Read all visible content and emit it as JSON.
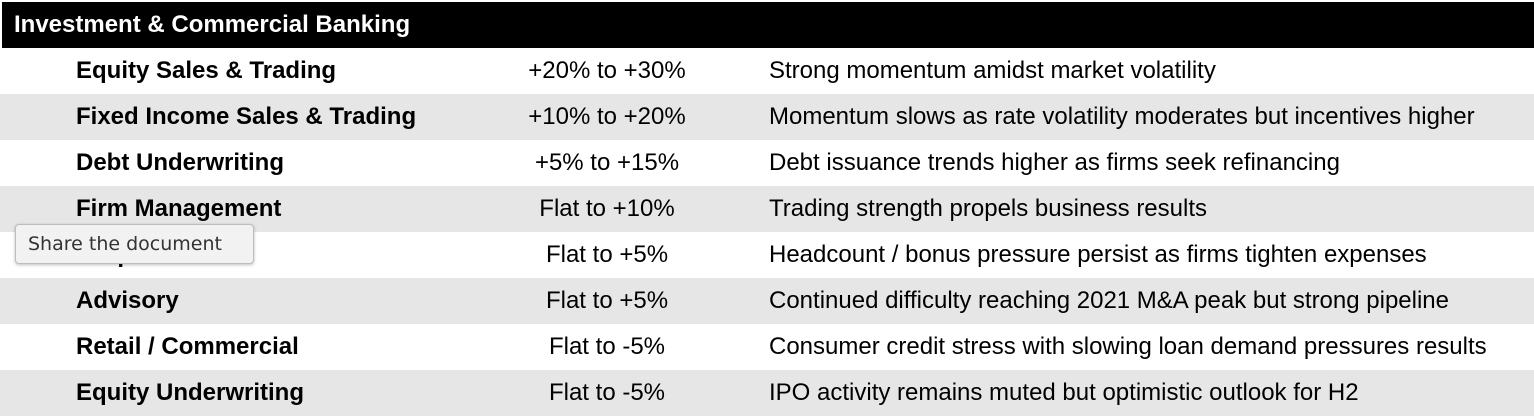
{
  "table": {
    "title": "Investment & Commercial Banking",
    "rows": [
      {
        "name": "Equity Sales & Trading",
        "range": "+20% to +30%",
        "note": "Strong momentum amidst market volatility"
      },
      {
        "name": "Fixed Income Sales & Trading",
        "range": "+10% to +20%",
        "note": "Momentum slows as rate volatility moderates but incentives higher"
      },
      {
        "name": "Debt Underwriting",
        "range": "+5% to +15%",
        "note": "Debt issuance trends higher as firms seek refinancing"
      },
      {
        "name": "Firm Management",
        "range": "Flat to +10%",
        "note": "Trading strength propels business results"
      },
      {
        "name": "Corporate Staff",
        "range": "Flat to +5%",
        "note": "Headcount / bonus pressure persist as firms tighten expenses"
      },
      {
        "name": "Advisory",
        "range": "Flat to +5%",
        "note": "Continued difficulty reaching 2021 M&A peak but strong pipeline"
      },
      {
        "name": "Retail / Commercial",
        "range": "Flat to -5%",
        "note": "Consumer credit stress with slowing loan demand pressures results"
      },
      {
        "name": "Equity Underwriting",
        "range": "Flat to -5%",
        "note": "IPO activity remains muted but optimistic outlook for H2"
      }
    ]
  },
  "tooltip": {
    "text": "Share the document"
  }
}
